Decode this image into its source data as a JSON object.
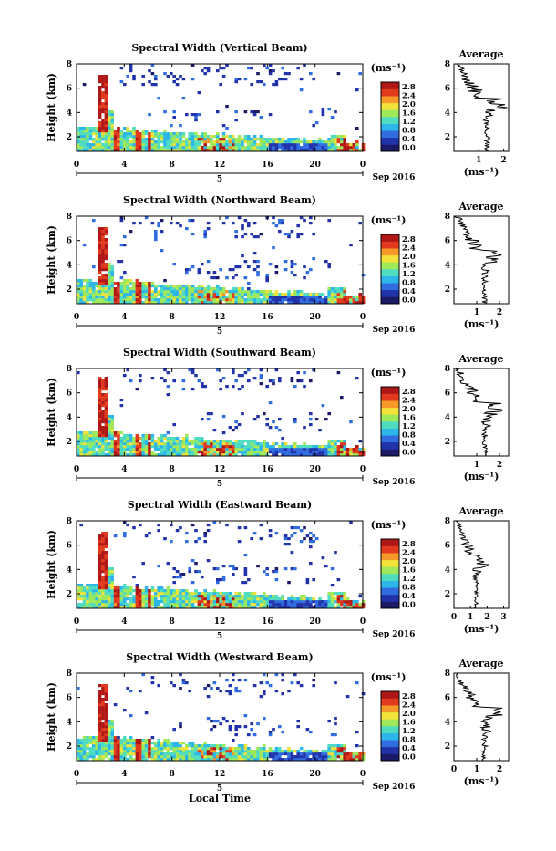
{
  "figure": {
    "xlabel": "Local Time",
    "panels": [
      {
        "title": "Spectral Width (Vertical Beam)",
        "avg_title": "Average",
        "avg_xticks": [
          "1",
          "2"
        ],
        "avg_xrange": [
          0,
          2.2
        ],
        "date_label": "Sep 2016",
        "seed": 11
      },
      {
        "title": "Spectral Width (Northward Beam)",
        "avg_title": "Average",
        "avg_xticks": [
          "1",
          "2"
        ],
        "avg_xrange": [
          0,
          2.4
        ],
        "date_label": "Sep 2016",
        "seed": 23
      },
      {
        "title": "Spectral Width (Southward Beam)",
        "avg_title": "Average",
        "avg_xticks": [
          "1",
          "2"
        ],
        "avg_xrange": [
          0,
          2.4
        ],
        "date_label": "Sep 2016",
        "seed": 37
      },
      {
        "title": "Spectral Width (Eastward Beam)",
        "avg_title": "Average",
        "avg_xticks": [
          "0",
          "1",
          "2",
          "3"
        ],
        "avg_xrange": [
          0,
          3.3
        ],
        "date_label": "Sep 2016",
        "seed": 41
      },
      {
        "title": "Spectral Width (Westward Beam)",
        "avg_title": "Average",
        "avg_xticks": [
          "0",
          "1",
          "2"
        ],
        "avg_xrange": [
          0,
          2.4
        ],
        "date_label": "Sep 2016",
        "seed": 53
      }
    ],
    "ylabel": "Height (km)",
    "yticks": [
      "2",
      "4",
      "6",
      "8"
    ],
    "xticks": [
      "0",
      "4",
      "8",
      "12",
      "16",
      "20",
      "0"
    ],
    "day_label": "5",
    "unit_label": "(ms⁻¹)",
    "colorbar_ticks": [
      "0.0",
      "0.4",
      "0.8",
      "1.2",
      "1.6",
      "2.0",
      "2.4",
      "2.8"
    ],
    "colorbar_colors": [
      "#1a1a66",
      "#2233aa",
      "#2f6de0",
      "#2cb6ea",
      "#4fdcc0",
      "#9ee85a",
      "#f2e23a",
      "#f59a28",
      "#e23a1c",
      "#b01818"
    ]
  },
  "chart_data": {
    "type": "heatmap",
    "title": "Spectral Width",
    "xlabel": "Local Time",
    "ylabel": "Height (km)",
    "xlim": [
      0,
      24
    ],
    "ylim": [
      0.8,
      8
    ],
    "colorbar": {
      "label": "(ms⁻¹)",
      "range": [
        0,
        2.8
      ]
    },
    "date": "Sep 2016",
    "average_profile_xlabel": "(ms⁻¹)"
  }
}
